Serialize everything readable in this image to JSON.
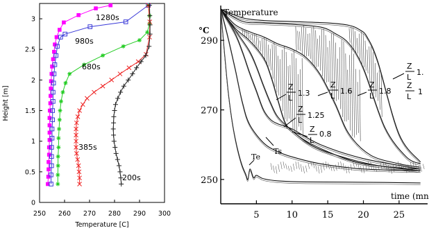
{
  "chart_data": [
    {
      "type": "line",
      "xlabel": "Temperature [C]",
      "ylabel": "Height [m]",
      "xlim": [
        250,
        300
      ],
      "ylim": [
        0,
        3.25
      ],
      "xticks": [
        "250",
        "260",
        "270",
        "280",
        "290",
        "300"
      ],
      "yticks": [
        "0",
        "0.5",
        "1",
        "1.5",
        "2",
        "2.5",
        "3"
      ],
      "grid": false,
      "series": [
        {
          "name": "1280s",
          "color": "#ff00ff",
          "marker": "square-filled",
          "x": [
            253.3,
            253.5,
            253.6,
            253.6,
            253.8,
            253.8,
            254.0,
            254.0,
            254.0,
            254.0,
            254.1,
            254.3,
            254.4,
            254.5,
            254.6,
            254.8,
            255.0,
            255.4,
            255.8,
            256.1,
            256.8,
            258.0,
            259.7,
            265.6,
            272.5,
            278.4
          ],
          "y": [
            0.3,
            0.42,
            0.54,
            0.66,
            0.78,
            0.9,
            1.02,
            1.14,
            1.26,
            1.38,
            1.5,
            1.62,
            1.74,
            1.86,
            1.98,
            2.1,
            2.22,
            2.34,
            2.46,
            2.58,
            2.7,
            2.82,
            2.94,
            3.06,
            3.17,
            3.22
          ]
        },
        {
          "name": "980s",
          "color": "#3a3ad8",
          "marker": "square-open",
          "x": [
            254.6,
            254.6,
            254.8,
            254.8,
            254.8,
            255.0,
            255.0,
            255.2,
            255.2,
            255.4,
            255.4,
            255.6,
            255.8,
            256.1,
            256.6,
            257.1,
            258.4,
            260.2,
            270.2,
            284.5,
            293.5
          ],
          "y": [
            0.3,
            0.45,
            0.6,
            0.75,
            0.9,
            1.05,
            1.2,
            1.35,
            1.5,
            1.65,
            1.8,
            1.95,
            2.1,
            2.25,
            2.4,
            2.55,
            2.7,
            2.75,
            2.87,
            2.95,
            3.22
          ]
        },
        {
          "name": "680s",
          "color": "#22cc22",
          "marker": "star",
          "x": [
            257.3,
            257.3,
            257.4,
            257.4,
            257.6,
            257.6,
            257.8,
            258.0,
            258.2,
            258.6,
            259.3,
            260.4,
            262.0,
            267.8,
            275.3,
            283.5,
            290.0,
            293.1,
            294.0,
            294.0,
            293.5
          ],
          "y": [
            0.3,
            0.45,
            0.6,
            0.75,
            0.9,
            1.05,
            1.2,
            1.35,
            1.5,
            1.65,
            1.8,
            1.95,
            2.1,
            2.25,
            2.4,
            2.55,
            2.65,
            2.78,
            2.92,
            3.05,
            3.22
          ]
        },
        {
          "name": "385s",
          "color": "#ee2222",
          "marker": "x",
          "x": [
            266.0,
            266.0,
            265.8,
            265.6,
            265.2,
            264.8,
            264.6,
            264.6,
            264.6,
            264.6,
            264.8,
            265.3,
            266.0,
            267.3,
            269.0,
            271.8,
            275.3,
            278.8,
            282.2,
            285.8,
            289.5,
            292.6,
            294.0,
            294.1,
            293.5
          ],
          "y": [
            0.3,
            0.4,
            0.5,
            0.6,
            0.7,
            0.8,
            0.9,
            1.0,
            1.1,
            1.2,
            1.3,
            1.4,
            1.5,
            1.6,
            1.7,
            1.8,
            1.9,
            2.0,
            2.1,
            2.2,
            2.3,
            2.42,
            2.7,
            2.95,
            3.22
          ]
        },
        {
          "name": "200s",
          "color": "#222222",
          "marker": "plus",
          "x": [
            282.7,
            282.5,
            282.2,
            281.8,
            281.2,
            280.6,
            280.2,
            279.8,
            279.6,
            279.5,
            279.6,
            279.7,
            280.0,
            280.4,
            281.3,
            282.4,
            283.7,
            285.5,
            287.2,
            288.8,
            290.6,
            292.5,
            293.8,
            294.2,
            294.2,
            294.1,
            294.0
          ],
          "y": [
            0.3,
            0.4,
            0.5,
            0.6,
            0.7,
            0.8,
            0.9,
            1.0,
            1.1,
            1.2,
            1.3,
            1.4,
            1.5,
            1.6,
            1.7,
            1.8,
            1.9,
            2.0,
            2.1,
            2.2,
            2.3,
            2.4,
            2.55,
            2.75,
            2.9,
            3.05,
            3.22
          ]
        }
      ]
    },
    {
      "type": "line",
      "title": "",
      "ylabel": "Temperature",
      "yunit": "°C",
      "xlabel": "time (mn",
      "xlim": [
        0,
        29
      ],
      "ylim": [
        243,
        300
      ],
      "xticks": [
        "5",
        "10",
        "15",
        "20",
        "25"
      ],
      "yticks": [
        "250",
        "270",
        "290"
      ],
      "grid": false,
      "series": [
        {
          "name": "Z/L=1.",
          "x": [
            0,
            3,
            6,
            10,
            15,
            18,
            19.5,
            20.5,
            22,
            25,
            28
          ],
          "y": [
            299,
            296.5,
            295.7,
            295.4,
            295.0,
            294.3,
            293.0,
            291.0,
            284.0,
            263.0,
            255.0
          ]
        },
        {
          "name": "Z/L=1.8",
          "x": [
            0,
            3,
            6,
            10,
            14,
            16,
            18,
            20,
            23,
            26,
            28
          ],
          "y": [
            299,
            295.5,
            295.0,
            294.6,
            293.8,
            292.0,
            289.0,
            282.0,
            265.0,
            256.5,
            254.5
          ]
        },
        {
          "name": "Z/L=1.6",
          "x": [
            0,
            2,
            4,
            6,
            8,
            10,
            12,
            14,
            16,
            18,
            21,
            25,
            28
          ],
          "y": [
            299,
            294.5,
            292.5,
            291.0,
            289.0,
            287.5,
            285.0,
            280.0,
            272.0,
            263.0,
            257.0,
            254.5,
            253.5
          ]
        },
        {
          "name": "Z/L=1.3",
          "x": [
            0,
            2,
            4,
            6,
            7,
            8,
            9,
            10,
            12,
            15,
            19,
            24,
            28
          ],
          "y": [
            299,
            293.5,
            290.0,
            285.0,
            280.0,
            273.0,
            266.5,
            264.0,
            261.0,
            258.0,
            255.0,
            253.5,
            253.0
          ]
        },
        {
          "name": "Z/L=1.25",
          "x": [
            0,
            2,
            4,
            5,
            6,
            7,
            8,
            10,
            13,
            17,
            22,
            28
          ],
          "y": [
            299,
            293.0,
            287.0,
            282.5,
            277.0,
            272.0,
            268.0,
            264.0,
            259.5,
            256.5,
            254.0,
            252.5
          ]
        },
        {
          "name": "Z/L=0.8",
          "x": [
            0,
            2,
            3,
            4,
            5,
            6,
            7,
            8,
            10,
            14,
            20,
            28
          ],
          "y": [
            299,
            292.0,
            287.0,
            281.0,
            275.5,
            270.0,
            267.2,
            266.0,
            264.5,
            260.0,
            256.0,
            253.0
          ]
        },
        {
          "name": "Ts",
          "x": [
            0,
            1,
            2,
            3,
            4,
            6,
            8,
            10,
            14,
            20,
            28
          ],
          "y": [
            299,
            291.0,
            282.0,
            272.5,
            266.0,
            260.5,
            258.0,
            256.5,
            254.5,
            253.0,
            252.5
          ]
        },
        {
          "name": "Te",
          "x": [
            0,
            0.5,
            1,
            1.5,
            2,
            2.5,
            3,
            3.5,
            3.8,
            4.1,
            4.6,
            5,
            6,
            8,
            12,
            20,
            28
          ],
          "y": [
            299,
            287.0,
            276.0,
            268.0,
            262.0,
            257.5,
            254.0,
            251.5,
            250.0,
            253.0,
            250.5,
            251.2,
            250.2,
            249.6,
            249.3,
            249.2,
            249.0
          ]
        }
      ],
      "annotations": {
        "z_over_l": [
          {
            "z": "Z",
            "l": "L",
            "value": "1.3"
          },
          {
            "z": "Z",
            "l": "L",
            "value": "1.6"
          },
          {
            "z": "Z",
            "l": "L",
            "value": "1.8"
          },
          {
            "z": "Z",
            "l": "L",
            "value": "1."
          },
          {
            "z": "Z",
            "l": "L",
            "value": "1"
          },
          {
            "z": "Z",
            "l": "L",
            "value": "1.25"
          },
          {
            "z": "Z",
            "l": "L",
            "value": "0.8"
          }
        ],
        "ts": "Ts",
        "te": "Te"
      }
    }
  ]
}
